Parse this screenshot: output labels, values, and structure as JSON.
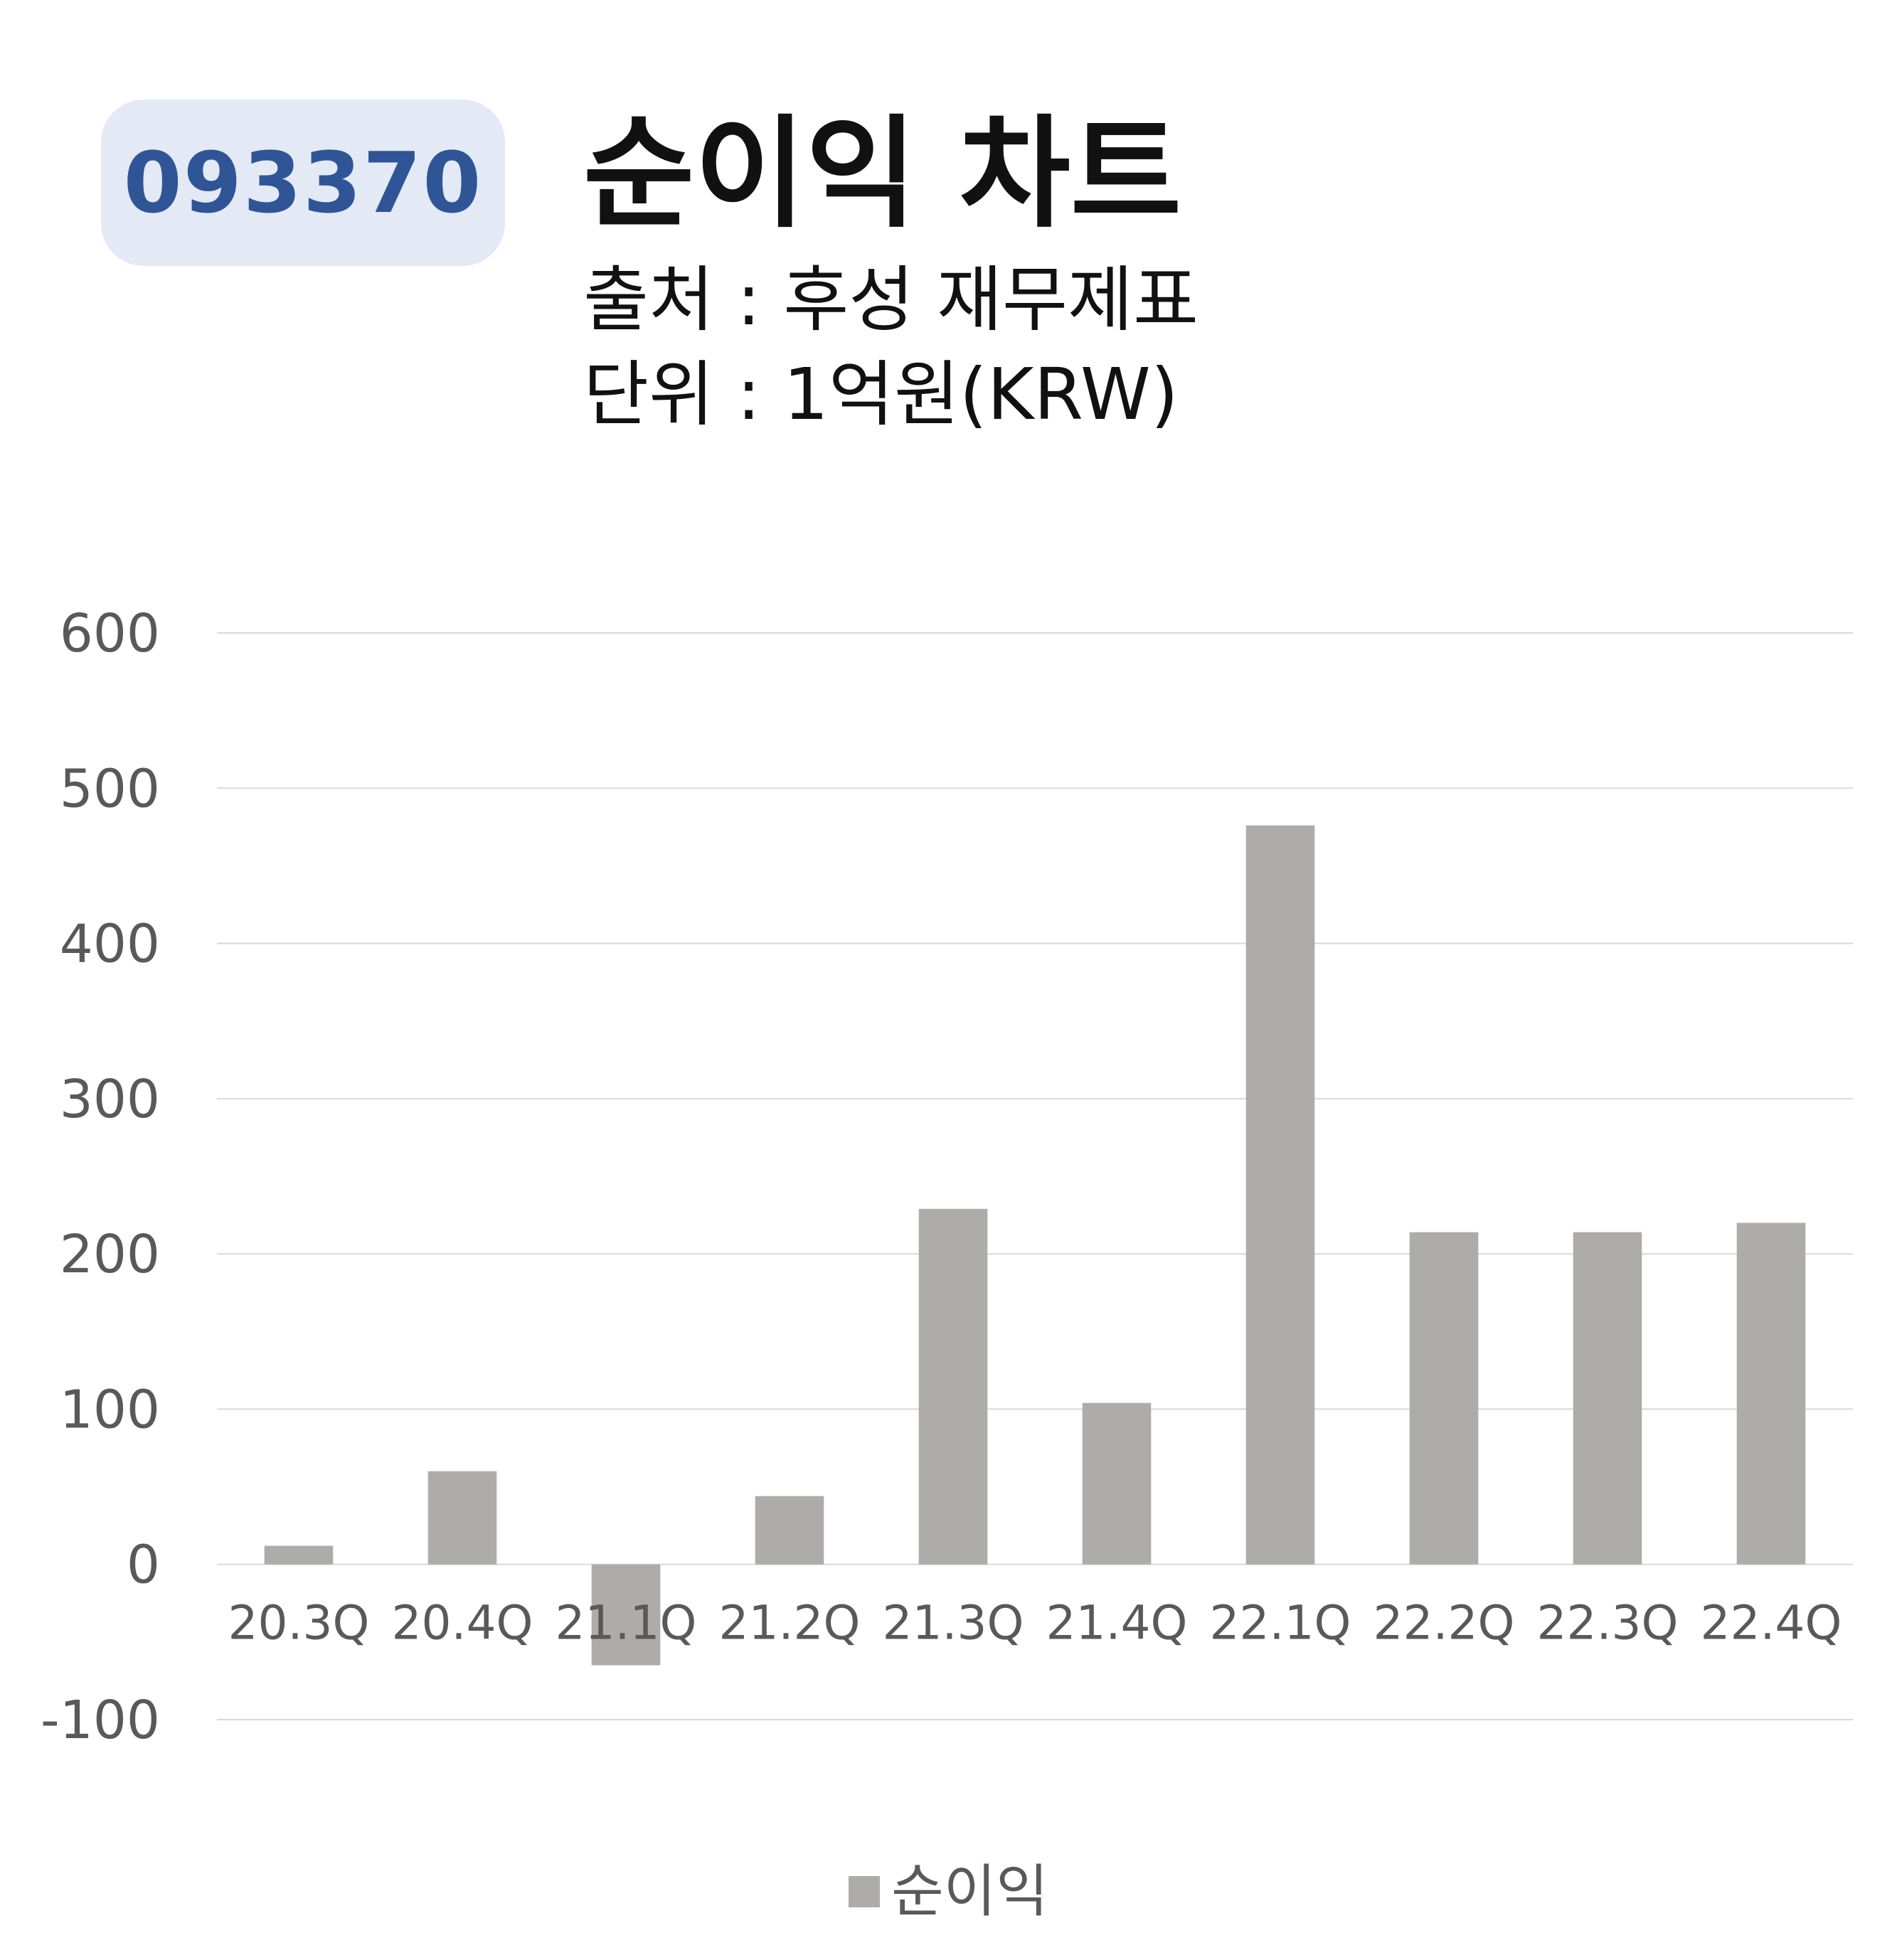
{
  "header": {
    "ticker": "093370",
    "title": "순이익 차트",
    "source": "출처 : 후성 재무제표",
    "unit": "단위 : 1억원(KRW)"
  },
  "chart_data": {
    "type": "bar",
    "categories": [
      "20.3Q",
      "20.4Q",
      "21.1Q",
      "21.2Q",
      "21.3Q",
      "21.4Q",
      "22.1Q",
      "22.2Q",
      "22.3Q",
      "22.4Q"
    ],
    "series": [
      {
        "name": "순이익",
        "values": [
          12,
          60,
          -65,
          44,
          229,
          104,
          476,
          214,
          214,
          220
        ],
        "color": "#aeabab"
      }
    ],
    "yticks": [
      "600",
      "500",
      "400",
      "300",
      "200",
      "100",
      "0",
      "-100"
    ],
    "ylim": [
      -100,
      600
    ],
    "grid": true,
    "legend_position": "bottom"
  }
}
